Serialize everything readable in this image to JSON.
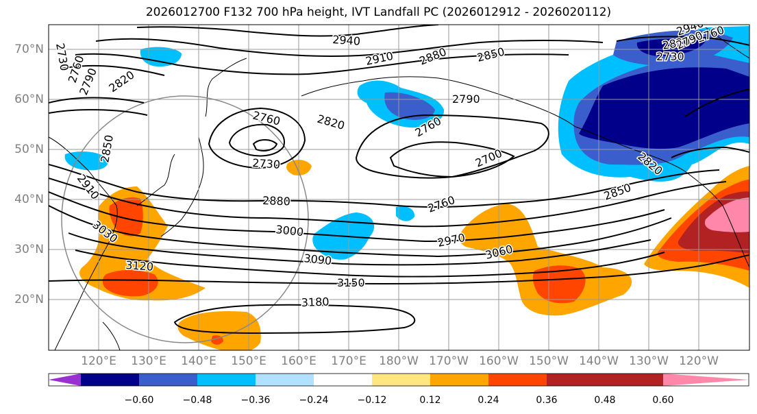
{
  "title": "2026012700 F132 700 hPa height, IVT Landfall PC (2026012912 - 2026020112)",
  "lat_labels": [
    "70°N",
    "60°N",
    "50°N",
    "40°N",
    "30°N",
    "20°N"
  ],
  "lon_labels": [
    "120°E",
    "130°E",
    "140°E",
    "150°E",
    "160°E",
    "170°E",
    "180°W",
    "170°W",
    "160°W",
    "150°W",
    "140°W",
    "130°W",
    "120°W"
  ],
  "colorbar": {
    "ticks": [
      "−0.60",
      "−0.48",
      "−0.36",
      "−0.24",
      "−0.12",
      "0.12",
      "0.24",
      "0.36",
      "0.48",
      "0.60"
    ],
    "colors": [
      "#9b30d0",
      "#00008b",
      "#3a5fcd",
      "#00bfff",
      "#b0e2ff",
      "#ffffff",
      "#ffe680",
      "#ffa500",
      "#ff4500",
      "#b22222",
      "#ff88aa"
    ]
  },
  "contour_labels": [
    "2940",
    "2910",
    "2880",
    "2850",
    "2820",
    "2790",
    "2760",
    "2730",
    "2760",
    "2790",
    "2820",
    "2850",
    "2730",
    "2760",
    "2820",
    "2730",
    "2700",
    "2760",
    "2850",
    "2910",
    "3030",
    "2880",
    "3000",
    "2970",
    "3060",
    "3090",
    "3120",
    "3150",
    "3180",
    "2940",
    "2760",
    "2790",
    "2820"
  ]
}
